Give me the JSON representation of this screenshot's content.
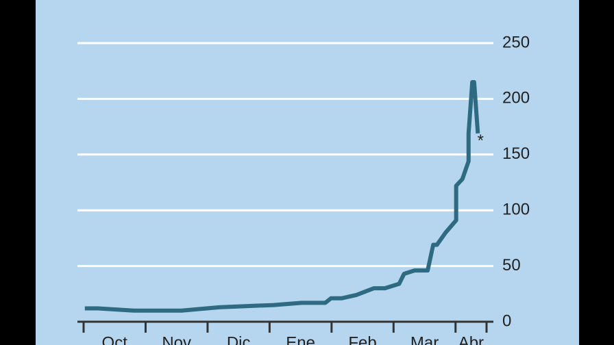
{
  "chart_data": {
    "type": "line",
    "categories": [
      "Oct",
      "Nov",
      "Dic",
      "Ene",
      "Feb",
      "Mar",
      "Abr"
    ],
    "x": [
      0.02,
      0.23,
      0.81,
      1.58,
      2.19,
      3.07,
      3.52,
      3.9,
      3.99,
      4.16,
      4.4,
      4.68,
      4.86,
      5.09,
      5.17,
      5.34,
      5.55,
      5.64,
      5.7,
      5.84,
      6.01,
      6.01,
      6.11,
      6.21,
      6.21,
      6.27,
      6.3,
      6.36
    ],
    "series": [
      {
        "color": "#2e6a82",
        "values": [
          12,
          12,
          10,
          10,
          13,
          15,
          17,
          17,
          21,
          21,
          24,
          30,
          30,
          34,
          43,
          46,
          46,
          69,
          69,
          80,
          91,
          122,
          128,
          144,
          169,
          215,
          215,
          169
        ]
      }
    ],
    "annotation": "*",
    "xlim": [
      0,
      6.5
    ],
    "xticks": [
      0,
      1,
      2,
      3,
      4,
      5,
      6,
      6.5
    ],
    "ylim": [
      0,
      250
    ],
    "yticks": [
      0,
      50,
      100,
      150,
      200,
      250
    ],
    "grid": true
  }
}
